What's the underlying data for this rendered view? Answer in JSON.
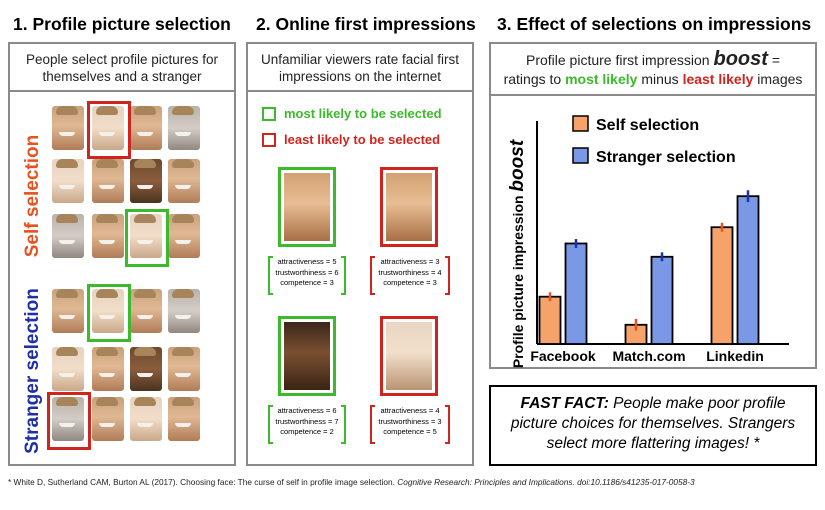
{
  "panel1": {
    "title": "1. Profile picture selection",
    "subtitle": "People select profile pictures for themselves and a stranger",
    "self_label": "Self selection",
    "stranger_label": "Stranger selection",
    "self_color": "#e8531d",
    "stranger_color": "#1f2fa8"
  },
  "panel2": {
    "title": "2. Online first impressions",
    "subtitle": "Unfamiliar viewers rate facial first impressions on the internet",
    "legend_most": "most likely to be selected",
    "legend_least": "least likely to be selected",
    "most_color": "#3cba2b",
    "least_color": "#d0241f",
    "ratings": [
      {
        "lines": [
          "attractiveness = 5",
          "trustworthiness = 6",
          "competence = 3"
        ],
        "frame": "green"
      },
      {
        "lines": [
          "attractiveness = 3",
          "trustworthiness = 4",
          "competence = 3"
        ],
        "frame": "red"
      },
      {
        "lines": [
          "attractiveness = 6",
          "trustworthiness = 7",
          "competence = 2"
        ],
        "frame": "green"
      },
      {
        "lines": [
          "attractiveness = 4",
          "trustworthiness = 3",
          "competence = 5"
        ],
        "frame": "red"
      }
    ]
  },
  "panel3": {
    "title": "3. Effect of selections on impressions",
    "subtitle_line1_pre": "Profile picture first impression ",
    "subtitle_boost": "boost",
    "subtitle_line1_post": " =",
    "subtitle_line2_pre": "ratings to ",
    "subtitle_most": "most likely",
    "subtitle_mid": " minus ",
    "subtitle_least": "least likely",
    "subtitle_line2_post": " images"
  },
  "chart_data": {
    "type": "bar",
    "ylabel_pre": "Profile picture impression ",
    "ylabel_boost": "boost",
    "categories": [
      "Facebook",
      "Match.com",
      "Linkedin"
    ],
    "series": [
      {
        "name": "Self selection",
        "color": "#f5a36b",
        "values": [
          0.32,
          0.13,
          0.79
        ]
      },
      {
        "name": "Stranger selection",
        "color": "#7b98e6",
        "values": [
          0.68,
          0.59,
          1.0
        ]
      }
    ],
    "errors": [
      [
        0.03,
        0.04,
        0.03
      ],
      [
        0.03,
        0.03,
        0.04
      ]
    ],
    "err_colors": [
      "#e8531d",
      "#1f2fa8"
    ],
    "ylim": [
      0,
      1.15
    ],
    "grid": false,
    "legend": "top-left"
  },
  "fast_fact": {
    "label": "FAST FACT:",
    "text": " People make poor profile picture choices for themselves. Strangers select more flattering images! *"
  },
  "footnote": {
    "plain": "* White D, Sutherland CAM, Burton AL (2017). Choosing face: The curse of self in profile image selection. ",
    "italic": "Cognitive Research: Principles and Implications. doi:10.1186/s41235-017-0058-3"
  }
}
